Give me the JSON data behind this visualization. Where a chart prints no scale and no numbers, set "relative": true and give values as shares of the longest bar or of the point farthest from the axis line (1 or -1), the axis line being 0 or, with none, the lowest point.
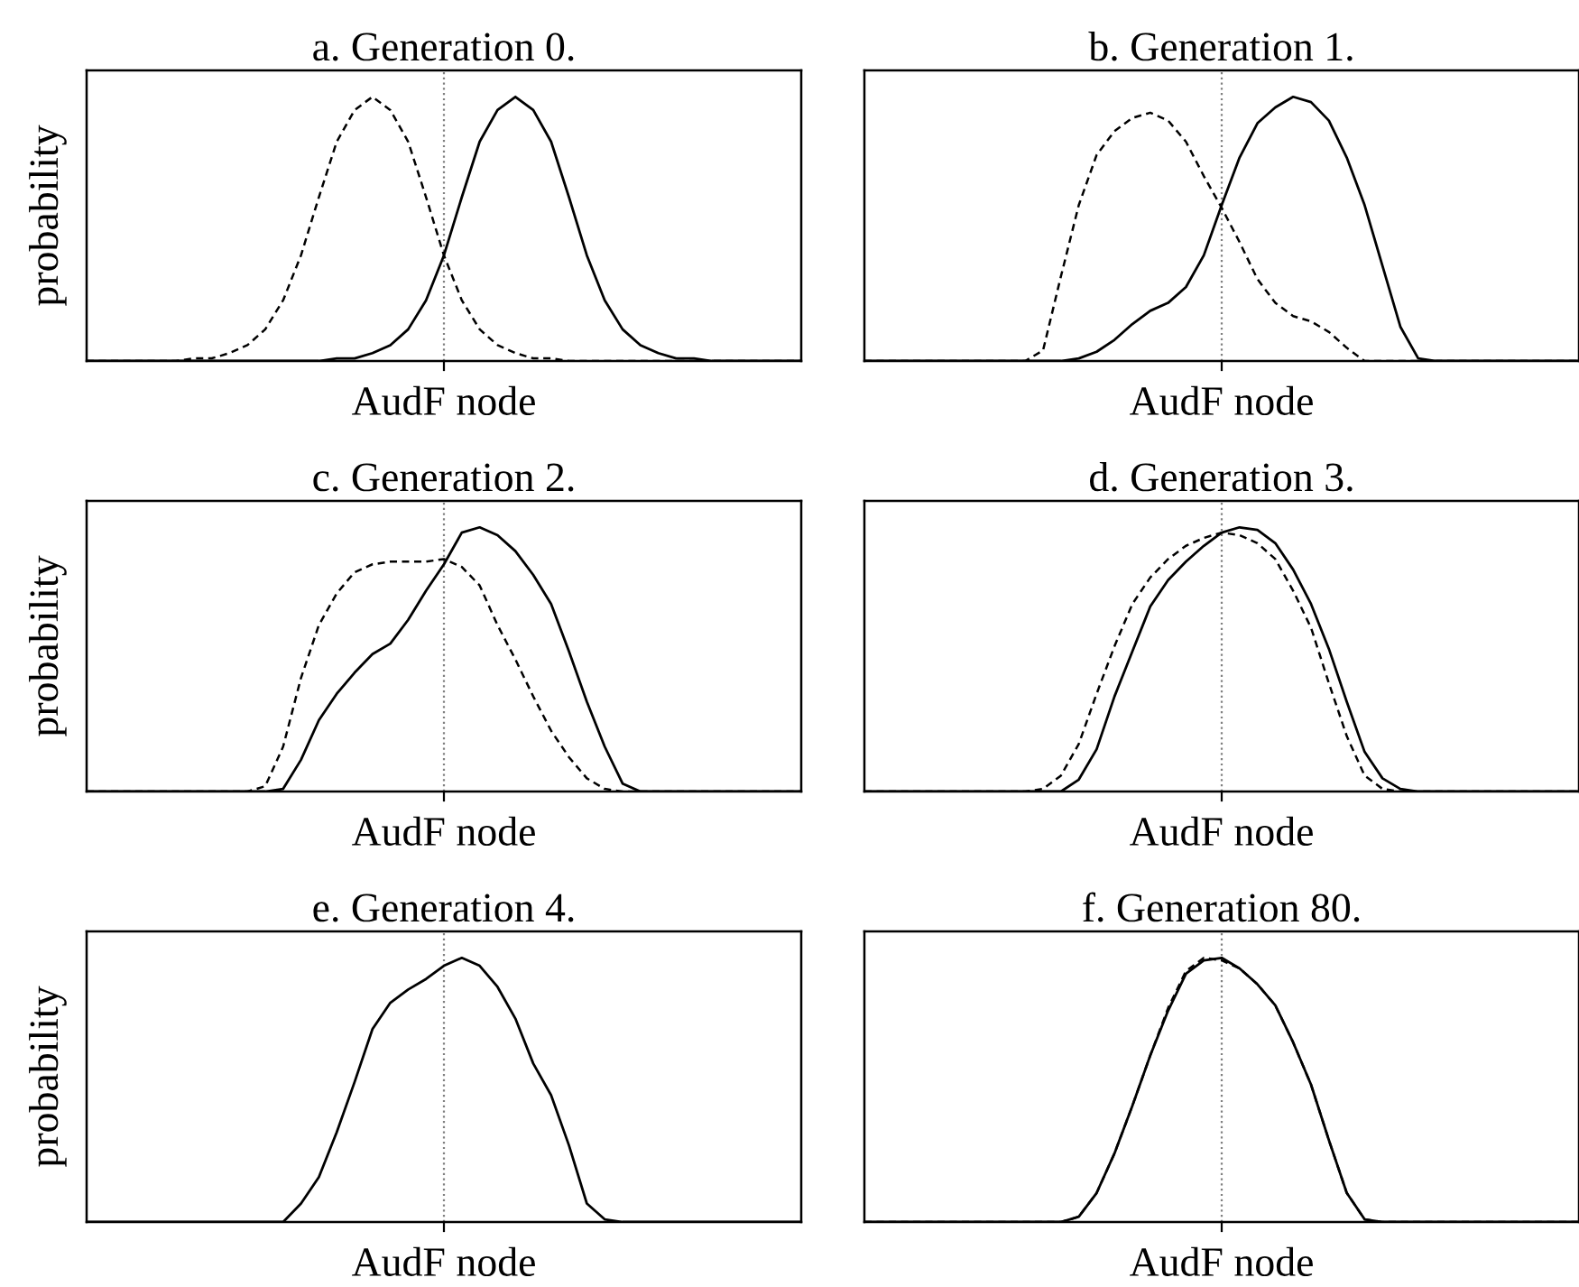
{
  "chart_data": [
    {
      "type": "line",
      "title": "a. Generation 0.",
      "xlabel": "AudF node",
      "ylabel": "probability",
      "relative": true,
      "tick_labels": false,
      "categories": [
        null,
        null,
        null,
        null,
        null,
        null,
        null,
        null,
        null,
        null,
        null,
        null,
        null,
        null,
        null,
        null,
        null,
        null,
        null,
        null,
        null,
        null,
        null,
        null,
        null,
        null,
        null,
        null,
        null,
        null,
        null,
        null,
        null,
        null,
        null,
        null,
        null,
        null,
        null,
        null,
        null
      ],
      "series": [
        {
          "color": "#000000",
          "line_style": "solid",
          "values": [
            0,
            0,
            0,
            0,
            0,
            0,
            0,
            0,
            0,
            0,
            0,
            0,
            0,
            0,
            0.01,
            0.01,
            0.03,
            0.06,
            0.12,
            0.23,
            0.4,
            0.62,
            0.83,
            0.95,
            1,
            0.95,
            0.83,
            0.62,
            0.4,
            0.23,
            0.12,
            0.06,
            0.03,
            0.01,
            0.01,
            0,
            0,
            0,
            0,
            0,
            0
          ]
        },
        {
          "color": "#000000",
          "line_style": "dashed",
          "values": [
            0,
            0,
            0,
            0,
            0,
            0,
            0.01,
            0.01,
            0.03,
            0.06,
            0.12,
            0.23,
            0.4,
            0.62,
            0.83,
            0.95,
            1,
            0.95,
            0.83,
            0.62,
            0.4,
            0.23,
            0.12,
            0.06,
            0.03,
            0.01,
            0.01,
            0,
            0,
            0,
            0,
            0,
            0,
            0,
            0,
            0,
            0,
            0,
            0,
            0,
            0
          ]
        }
      ]
    },
    {
      "type": "line",
      "title": "b. Generation 1.",
      "xlabel": "AudF node",
      "relative": true,
      "tick_labels": false,
      "categories": [
        null,
        null,
        null,
        null,
        null,
        null,
        null,
        null,
        null,
        null,
        null,
        null,
        null,
        null,
        null,
        null,
        null,
        null,
        null,
        null,
        null,
        null,
        null,
        null,
        null,
        null,
        null,
        null,
        null,
        null,
        null,
        null,
        null,
        null,
        null,
        null,
        null,
        null,
        null,
        null,
        null
      ],
      "series": [
        {
          "color": "#000000",
          "line_style": "solid",
          "values": [
            0,
            0,
            0,
            0,
            0,
            0,
            0,
            0,
            0,
            0,
            0,
            0,
            0.01,
            0.035,
            0.08,
            0.14,
            0.19,
            0.22,
            0.28,
            0.4,
            0.59,
            0.77,
            0.9,
            0.96,
            1,
            0.98,
            0.91,
            0.77,
            0.59,
            0.36,
            0.13,
            0.01,
            0,
            0,
            0,
            0,
            0,
            0,
            0,
            0,
            0
          ]
        },
        {
          "color": "#000000",
          "line_style": "dashed",
          "values": [
            0,
            0,
            0,
            0,
            0,
            0,
            0,
            0,
            0,
            0,
            0.04,
            0.32,
            0.59,
            0.78,
            0.87,
            0.92,
            0.94,
            0.91,
            0.83,
            0.7,
            0.58,
            0.45,
            0.31,
            0.22,
            0.17,
            0.15,
            0.11,
            0.05,
            0,
            0,
            0,
            0,
            0,
            0,
            0,
            0,
            0,
            0,
            0,
            0,
            0
          ]
        }
      ]
    },
    {
      "type": "line",
      "title": "c. Generation 2.",
      "xlabel": "AudF node",
      "ylabel": "probability",
      "relative": true,
      "tick_labels": false,
      "categories": [
        null,
        null,
        null,
        null,
        null,
        null,
        null,
        null,
        null,
        null,
        null,
        null,
        null,
        null,
        null,
        null,
        null,
        null,
        null,
        null,
        null,
        null,
        null,
        null,
        null,
        null,
        null,
        null,
        null,
        null,
        null,
        null,
        null,
        null,
        null,
        null,
        null,
        null,
        null,
        null,
        null
      ],
      "series": [
        {
          "color": "#000000",
          "line_style": "solid",
          "values": [
            0,
            0,
            0,
            0,
            0,
            0,
            0,
            0,
            0,
            0,
            0,
            0.01,
            0.12,
            0.27,
            0.37,
            0.45,
            0.52,
            0.56,
            0.65,
            0.76,
            0.86,
            0.98,
            1,
            0.97,
            0.91,
            0.82,
            0.71,
            0.53,
            0.34,
            0.17,
            0.03,
            0,
            0,
            0,
            0,
            0,
            0,
            0,
            0,
            0,
            0
          ]
        },
        {
          "color": "#000000",
          "line_style": "dashed",
          "values": [
            0,
            0,
            0,
            0,
            0,
            0,
            0,
            0,
            0,
            0,
            0.02,
            0.17,
            0.43,
            0.63,
            0.75,
            0.83,
            0.86,
            0.87,
            0.87,
            0.87,
            0.88,
            0.85,
            0.78,
            0.63,
            0.5,
            0.36,
            0.23,
            0.13,
            0.05,
            0.01,
            0,
            0,
            0,
            0,
            0,
            0,
            0,
            0,
            0,
            0,
            0
          ]
        }
      ]
    },
    {
      "type": "line",
      "title": "d. Generation 3.",
      "xlabel": "AudF node",
      "relative": true,
      "tick_labels": false,
      "categories": [
        null,
        null,
        null,
        null,
        null,
        null,
        null,
        null,
        null,
        null,
        null,
        null,
        null,
        null,
        null,
        null,
        null,
        null,
        null,
        null,
        null,
        null,
        null,
        null,
        null,
        null,
        null,
        null,
        null,
        null,
        null,
        null,
        null,
        null,
        null,
        null,
        null,
        null,
        null,
        null,
        null
      ],
      "series": [
        {
          "color": "#000000",
          "line_style": "solid",
          "values": [
            0,
            0,
            0,
            0,
            0,
            0,
            0,
            0,
            0,
            0,
            0,
            0,
            0.045,
            0.16,
            0.36,
            0.53,
            0.7,
            0.8,
            0.87,
            0.93,
            0.98,
            1,
            0.99,
            0.94,
            0.84,
            0.71,
            0.54,
            0.34,
            0.15,
            0.05,
            0.01,
            0,
            0,
            0,
            0,
            0,
            0,
            0,
            0,
            0,
            0
          ]
        },
        {
          "color": "#000000",
          "line_style": "dashed",
          "values": [
            0,
            0,
            0,
            0,
            0,
            0,
            0,
            0,
            0,
            0,
            0.01,
            0.06,
            0.18,
            0.37,
            0.55,
            0.71,
            0.81,
            0.88,
            0.93,
            0.96,
            0.98,
            0.97,
            0.94,
            0.88,
            0.76,
            0.62,
            0.41,
            0.21,
            0.06,
            0.01,
            0,
            0,
            0,
            0,
            0,
            0,
            0,
            0,
            0,
            0,
            0
          ]
        }
      ]
    },
    {
      "type": "line",
      "title": "e. Generation 4.",
      "xlabel": "AudF node",
      "ylabel": "probability",
      "relative": true,
      "tick_labels": false,
      "categories": [
        null,
        null,
        null,
        null,
        null,
        null,
        null,
        null,
        null,
        null,
        null,
        null,
        null,
        null,
        null,
        null,
        null,
        null,
        null,
        null,
        null,
        null,
        null,
        null,
        null,
        null,
        null,
        null,
        null,
        null,
        null,
        null,
        null,
        null,
        null,
        null,
        null,
        null,
        null,
        null,
        null
      ],
      "series": [
        {
          "color": "#000000",
          "line_style": "solid",
          "values": [
            0,
            0,
            0,
            0,
            0,
            0,
            0,
            0,
            0,
            0,
            0,
            0,
            0.07,
            0.17,
            0.34,
            0.53,
            0.73,
            0.83,
            0.88,
            0.92,
            0.97,
            1,
            0.97,
            0.89,
            0.77,
            0.6,
            0.48,
            0.29,
            0.07,
            0.01,
            0,
            0,
            0,
            0,
            0,
            0,
            0,
            0,
            0,
            0,
            0
          ]
        }
      ]
    },
    {
      "type": "line",
      "title": "f. Generation 80.",
      "xlabel": "AudF node",
      "relative": true,
      "tick_labels": false,
      "categories": [
        null,
        null,
        null,
        null,
        null,
        null,
        null,
        null,
        null,
        null,
        null,
        null,
        null,
        null,
        null,
        null,
        null,
        null,
        null,
        null,
        null,
        null,
        null,
        null,
        null,
        null,
        null,
        null,
        null,
        null,
        null,
        null,
        null,
        null,
        null,
        null,
        null,
        null,
        null,
        null,
        null
      ],
      "series": [
        {
          "color": "#000000",
          "line_style": "solid",
          "values": [
            0,
            0,
            0,
            0,
            0,
            0,
            0,
            0,
            0,
            0,
            0,
            0,
            0.02,
            0.11,
            0.26,
            0.44,
            0.63,
            0.8,
            0.94,
            0.99,
            1,
            0.96,
            0.9,
            0.82,
            0.68,
            0.52,
            0.31,
            0.11,
            0.01,
            0,
            0,
            0,
            0,
            0,
            0,
            0,
            0,
            0,
            0,
            0,
            0
          ]
        },
        {
          "color": "#000000",
          "line_style": "dashed",
          "values": [
            0,
            0,
            0,
            0,
            0,
            0,
            0,
            0,
            0,
            0,
            0,
            0,
            0.02,
            0.11,
            0.26,
            0.44,
            0.63,
            0.81,
            0.95,
            1,
            0.99,
            0.96,
            0.9,
            0.82,
            0.68,
            0.52,
            0.31,
            0.11,
            0.01,
            0,
            0,
            0,
            0,
            0,
            0,
            0,
            0,
            0,
            0,
            0,
            0
          ]
        }
      ]
    }
  ]
}
